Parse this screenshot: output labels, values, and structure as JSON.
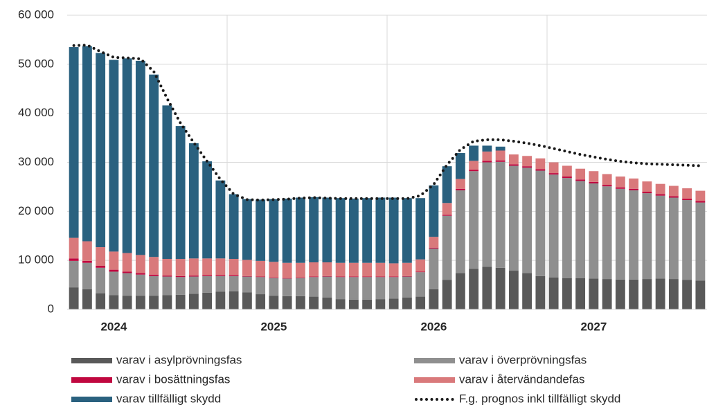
{
  "chart_data": {
    "type": "bar",
    "stacked": true,
    "categories": [
      null,
      null,
      null,
      null,
      null,
      null,
      null,
      null,
      null,
      null,
      null,
      null,
      null,
      null,
      null,
      null,
      null,
      null,
      null,
      null,
      null,
      null,
      null,
      null,
      null,
      null,
      null,
      null,
      null,
      null,
      null,
      null,
      null,
      null,
      null,
      null,
      null,
      null,
      null,
      null,
      null,
      null,
      null,
      null,
      null,
      null,
      null,
      null
    ],
    "year_labels": [
      "2024",
      "2025",
      "2026",
      "2027"
    ],
    "ylim": [
      0,
      60000
    ],
    "yticks": [
      0,
      {
        "value": 10000,
        "label": "10 000"
      },
      {
        "value": 20000,
        "label": "20 000"
      },
      {
        "value": 30000,
        "label": "30 000"
      },
      {
        "value": 40000,
        "label": "40 000"
      },
      {
        "value": 50000,
        "label": "50 000"
      },
      {
        "value": 60000,
        "label": "60 000"
      }
    ],
    "grid": true,
    "series": [
      {
        "name": "varav i asylprövningsfas",
        "color": "#595959",
        "values": [
          4500,
          4100,
          3300,
          2900,
          2800,
          2800,
          2800,
          2900,
          3000,
          3200,
          3400,
          3600,
          3700,
          3500,
          3100,
          2800,
          2700,
          2700,
          2600,
          2400,
          2100,
          2000,
          2000,
          2100,
          2200,
          2400,
          2600,
          4100,
          6000,
          7400,
          8300,
          8700,
          8500,
          7900,
          7400,
          6800,
          6500,
          6400,
          6400,
          6300,
          6200,
          6100,
          6100,
          6200,
          6300,
          6200,
          6000,
          5900
        ]
      },
      {
        "name": "varav i överprövningsfas",
        "color": "#8f8f8f",
        "values": [
          5400,
          5400,
          5200,
          4800,
          4600,
          4300,
          4000,
          3800,
          3600,
          3500,
          3400,
          3200,
          3100,
          3200,
          3500,
          3600,
          3600,
          3700,
          4000,
          4300,
          4500,
          4600,
          4600,
          4500,
          4400,
          4300,
          5000,
          8300,
          13100,
          16900,
          19900,
          21300,
          21600,
          21400,
          21500,
          21500,
          21000,
          20400,
          19800,
          19400,
          18900,
          18500,
          18200,
          17500,
          16900,
          16600,
          16300,
          15900
        ]
      },
      {
        "name": "varav i bosättningsfas",
        "color": "#c0073f",
        "values": [
          500,
          400,
          400,
          400,
          300,
          300,
          300,
          200,
          200,
          200,
          200,
          200,
          200,
          100,
          100,
          100,
          100,
          100,
          100,
          100,
          100,
          100,
          100,
          100,
          100,
          100,
          100,
          200,
          200,
          300,
          300,
          300,
          300,
          300,
          300,
          300,
          300,
          300,
          300,
          300,
          300,
          300,
          300,
          300,
          300,
          300,
          300,
          300
        ]
      },
      {
        "name": "varav i återvändandefas",
        "color": "#d9797b",
        "values": [
          4200,
          4000,
          3800,
          3700,
          3800,
          3700,
          3600,
          3400,
          3500,
          3500,
          3400,
          3400,
          3300,
          3300,
          3200,
          3200,
          3100,
          3000,
          2900,
          2800,
          2800,
          2800,
          2800,
          2800,
          2700,
          2700,
          2500,
          2200,
          2400,
          2000,
          1800,
          1900,
          2000,
          2000,
          2100,
          2200,
          2200,
          2200,
          2200,
          2200,
          2200,
          2200,
          2100,
          2100,
          2100,
          2100,
          2100,
          2100
        ]
      },
      {
        "name": "varav tillfälligt skydd",
        "color": "#2a617f",
        "values": [
          38900,
          39800,
          39600,
          39100,
          39700,
          39600,
          37200,
          31300,
          27100,
          23500,
          19800,
          15900,
          13200,
          12400,
          12500,
          12800,
          13100,
          13300,
          13300,
          13200,
          13200,
          13100,
          13200,
          13300,
          13400,
          13200,
          12500,
          10500,
          7500,
          5300,
          3100,
          1200,
          800,
          0,
          0,
          0,
          0,
          0,
          0,
          0,
          0,
          0,
          0,
          0,
          0,
          0,
          0,
          0
        ]
      },
      {
        "name": "F.g. prognos inkl tillfälligt skydd",
        "type": "line",
        "color": "#1a1a1a",
        "values": [
          53800,
          53900,
          52600,
          51400,
          51300,
          51100,
          48500,
          43000,
          38000,
          34000,
          30200,
          26500,
          23500,
          22400,
          22300,
          22400,
          22500,
          22700,
          22800,
          22700,
          22600,
          22600,
          22600,
          22600,
          22600,
          22600,
          23200,
          25500,
          29500,
          32600,
          34300,
          34600,
          34600,
          34300,
          33900,
          33400,
          32800,
          32200,
          31600,
          31100,
          30600,
          30200,
          29900,
          29700,
          29600,
          29500,
          29400,
          29300
        ]
      }
    ]
  }
}
